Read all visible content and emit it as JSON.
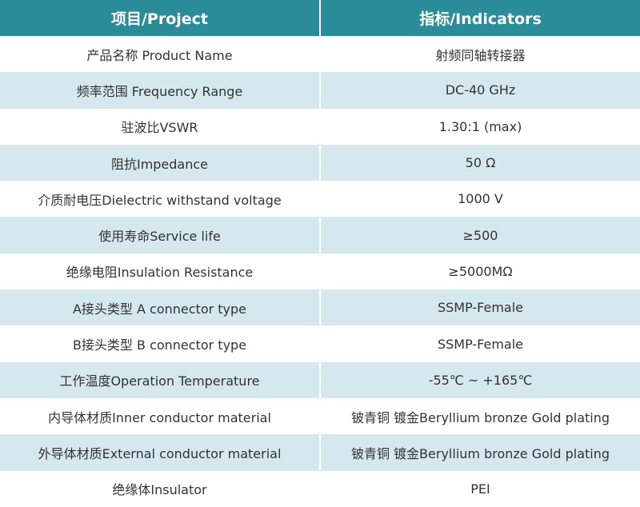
{
  "header": [
    "项目/Project",
    "指标/Indicators"
  ],
  "table": {
    "rows": [
      [
        "产品名称 Product Name",
        "射频同轴转接器"
      ],
      [
        "频率范围 Frequency Range",
        "DC-40 GHz"
      ],
      [
        "驻波比VSWR",
        "1.30:1 (max)"
      ],
      [
        "阻抗Impedance",
        "50 Ω"
      ],
      [
        "介质耐电压Dielectric withstand voltage",
        "1000 V"
      ],
      [
        "使用寿命Service life",
        "≥500"
      ],
      [
        "绝缘电阻Insulation Resistance",
        "≥5000MΩ"
      ],
      [
        "A接头类型 A connector type",
        "SSMP-Female"
      ],
      [
        "B接头类型 B connector type",
        "SSMP-Female"
      ],
      [
        "工作温度Operation Temperature",
        "-55℃ ~ +165℃"
      ],
      [
        "内导体材质Inner conductor material",
        "铍青铜 镀金Beryllium bronze Gold plating"
      ],
      [
        "外导体材质External conductor material",
        "铍青铜 镀金Beryllium bronze Gold plating"
      ],
      [
        "绝缘体Insulator",
        "PEI"
      ]
    ]
  }
}
